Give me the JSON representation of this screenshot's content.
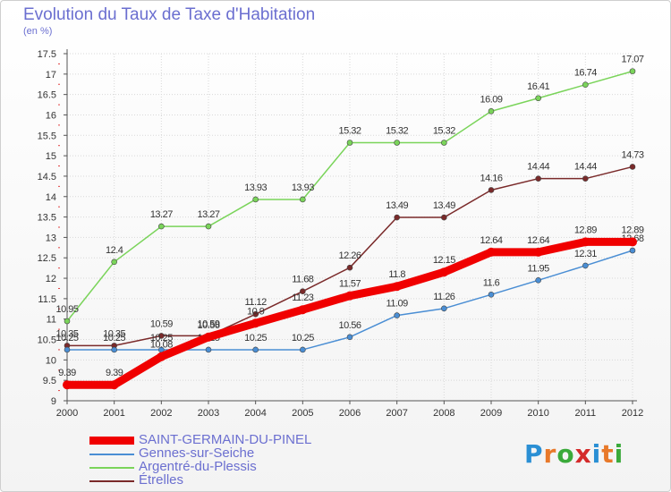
{
  "title": "Evolution du Taux de Taxe d'Habitation",
  "subtitle": "(en %)",
  "logo": {
    "text": "Proxiti",
    "colors": [
      "#2a8fd4",
      "#e8792a",
      "#3aaa3a",
      "#d42a2a",
      "#2a8fd4",
      "#e8792a",
      "#3aaa3a"
    ]
  },
  "chart_data": {
    "type": "line",
    "x": [
      "2000",
      "2001",
      "2002",
      "2003",
      "2004",
      "2005",
      "2006",
      "2007",
      "2008",
      "2009",
      "2010",
      "2011",
      "2012"
    ],
    "ylim": [
      9,
      17.5
    ],
    "yticks": [
      "9",
      "9.5",
      "10",
      "10.5",
      "11",
      "11.5",
      "12",
      "12.5",
      "13",
      "13.5",
      "14",
      "14.5",
      "15",
      "15.5",
      "16",
      "16.5",
      "17",
      "17.5"
    ],
    "grid": true,
    "legend_position": "bottom-left",
    "series": [
      {
        "name": "Étrelles",
        "color": "#7a2a2a",
        "values": [
          10.35,
          10.35,
          10.59,
          10.59,
          11.12,
          11.68,
          12.26,
          13.49,
          13.49,
          14.16,
          14.44,
          14.44,
          14.73
        ],
        "labels": [
          "10.35",
          "10.35",
          "10.59",
          "10.59",
          "11.12",
          "11.68",
          "12.26",
          "13.49",
          "13.49",
          "14.16",
          "14.44",
          "14.44",
          "14.73"
        ]
      },
      {
        "name": "Gennes-sur-Seiche",
        "color": "#4a8ed4",
        "values": [
          10.25,
          10.25,
          10.25,
          10.25,
          10.25,
          10.25,
          10.56,
          11.09,
          11.26,
          11.6,
          11.95,
          12.31,
          12.68
        ],
        "labels": [
          "10.25",
          "10.25",
          "10.25",
          "10.25",
          "10.25",
          "10.25",
          "10.56",
          "11.09",
          "11.26",
          "11.6",
          "11.95",
          "12.31",
          "12.68"
        ]
      },
      {
        "name": "Argentré-du-Plessis",
        "color": "#7ad45a",
        "values": [
          10.95,
          12.4,
          13.27,
          13.27,
          13.93,
          13.93,
          15.32,
          15.32,
          15.32,
          16.09,
          16.41,
          16.74,
          17.07
        ],
        "labels": [
          "10.95",
          "12.4",
          "13.27",
          "13.27",
          "13.93",
          "13.93",
          "15.32",
          "15.32",
          "15.32",
          "16.09",
          "16.41",
          "16.74",
          "17.07"
        ]
      },
      {
        "name": "SAINT-GERMAIN-DU-PINEL",
        "color": "#f00000",
        "values": [
          9.39,
          9.39,
          10.08,
          10.56,
          10.9,
          11.23,
          11.57,
          11.8,
          12.15,
          12.64,
          12.64,
          12.89,
          12.89
        ],
        "labels": [
          "9.39",
          "9.39",
          "10.08",
          "10.56",
          "10.9",
          "11.23",
          "11.57",
          "11.8",
          "12.15",
          "12.64",
          "12.64",
          "12.89",
          "12.89"
        ]
      }
    ],
    "legend": [
      "SAINT-GERMAIN-DU-PINEL",
      "Gennes-sur-Seiche",
      "Argentré-du-Plessis",
      "Étrelles"
    ]
  }
}
